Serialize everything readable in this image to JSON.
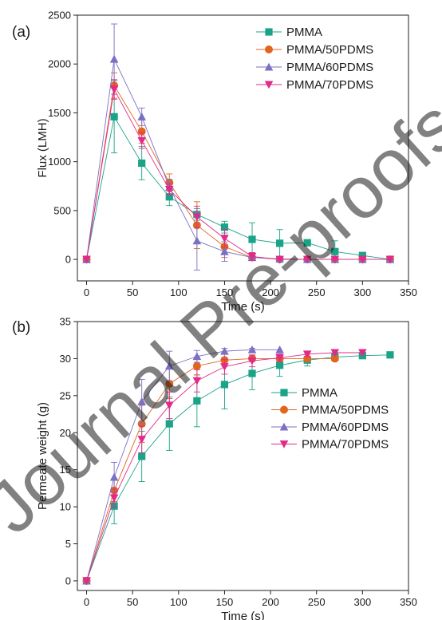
{
  "watermark": {
    "text": "Journal Pre-proofs",
    "color": "#dcdcdc"
  },
  "colors": {
    "PMMA": "#1aa387",
    "PMMA/50PDMS": "#e0651f",
    "PMMA/60PDMS": "#7a70c4",
    "PMMA/70PDMS": "#e22a8a"
  },
  "chart_data": [
    {
      "type": "line",
      "panel_label": "(a)",
      "title": "",
      "xlabel": "Time (s)",
      "ylabel": "Flux (LMH)",
      "xlim": [
        -10,
        350
      ],
      "ylim": [
        -220,
        2500
      ],
      "xticks": [
        0,
        50,
        100,
        150,
        200,
        250,
        300,
        350
      ],
      "yticks": [
        0,
        500,
        1000,
        1500,
        2000,
        2500
      ],
      "grid": false,
      "legend_position": "top-right",
      "series": [
        {
          "name": "PMMA",
          "marker": "square",
          "x": [
            0,
            30,
            60,
            90,
            120,
            150,
            180,
            210,
            240,
            270,
            300,
            330
          ],
          "y": [
            0,
            1460,
            985,
            640,
            460,
            330,
            205,
            165,
            170,
            80,
            40,
            0
          ],
          "err": [
            0,
            370,
            170,
            90,
            60,
            60,
            170,
            140,
            0,
            110,
            0,
            0
          ]
        },
        {
          "name": "PMMA/50PDMS",
          "marker": "circle",
          "x": [
            0,
            30,
            60,
            90,
            120,
            150,
            180,
            210,
            240,
            270,
            300,
            330
          ],
          "y": [
            0,
            1780,
            1310,
            785,
            350,
            130,
            20,
            0,
            0,
            0,
            0,
            0
          ],
          "err": [
            0,
            130,
            120,
            90,
            240,
            110,
            30,
            0,
            0,
            0,
            0,
            0
          ]
        },
        {
          "name": "PMMA/60PDMS",
          "marker": "triangle-up",
          "x": [
            0,
            30,
            60,
            90,
            120,
            150,
            180,
            210,
            240,
            270,
            300,
            330
          ],
          "y": [
            0,
            2050,
            1460,
            740,
            190,
            80,
            20,
            5,
            0,
            0,
            0,
            0
          ],
          "err": [
            0,
            360,
            90,
            80,
            300,
            100,
            30,
            0,
            0,
            0,
            0,
            0
          ]
        },
        {
          "name": "PMMA/70PDMS",
          "marker": "triangle-down",
          "x": [
            0,
            30,
            60,
            90,
            120,
            150,
            180,
            210,
            240,
            270,
            300,
            330
          ],
          "y": [
            0,
            1740,
            1215,
            715,
            435,
            215,
            30,
            0,
            0,
            0,
            0,
            0
          ],
          "err": [
            0,
            100,
            80,
            60,
            110,
            90,
            40,
            0,
            0,
            0,
            0,
            0
          ]
        }
      ]
    },
    {
      "type": "line",
      "panel_label": "(b)",
      "title": "",
      "xlabel": "Time (s)",
      "ylabel": "Permeate weight (g)",
      "xlim": [
        -10,
        350
      ],
      "ylim": [
        -1.3,
        35
      ],
      "xticks": [
        0,
        50,
        100,
        150,
        200,
        250,
        300,
        350
      ],
      "yticks": [
        0,
        5,
        10,
        15,
        20,
        25,
        30,
        35
      ],
      "grid": false,
      "legend_position": "center-right",
      "series": [
        {
          "name": "PMMA",
          "marker": "square",
          "x": [
            0,
            30,
            60,
            90,
            120,
            150,
            180,
            210,
            240,
            270,
            300,
            330
          ],
          "y": [
            0,
            10.1,
            16.8,
            21.2,
            24.3,
            26.5,
            28.0,
            29.1,
            29.8,
            30.2,
            30.4,
            30.5
          ],
          "err": [
            0,
            2.4,
            3.4,
            3.6,
            3.5,
            3.3,
            2.2,
            1.5,
            0.8,
            0.5,
            0.3,
            0
          ]
        },
        {
          "name": "PMMA/50PDMS",
          "marker": "circle",
          "x": [
            0,
            30,
            60,
            90,
            120,
            150,
            180,
            210,
            240,
            270
          ],
          "y": [
            0,
            12.2,
            21.2,
            26.6,
            29.0,
            29.8,
            30.0,
            30.0,
            30.0,
            30.0
          ],
          "err": [
            0,
            1.5,
            2.5,
            2.0,
            1.2,
            0.8,
            0.4,
            0,
            0,
            0
          ]
        },
        {
          "name": "PMMA/60PDMS",
          "marker": "triangle-up",
          "x": [
            0,
            30,
            60,
            90,
            120,
            150,
            180,
            210
          ],
          "y": [
            0,
            14.0,
            24.2,
            29.0,
            30.3,
            31.0,
            31.2,
            31.2
          ],
          "err": [
            0,
            2.0,
            3.0,
            2.0,
            0.8,
            0.4,
            0.2,
            0
          ]
        },
        {
          "name": "PMMA/70PDMS",
          "marker": "triangle-down",
          "x": [
            0,
            30,
            60,
            90,
            120,
            150,
            180,
            210,
            240,
            270,
            300
          ],
          "y": [
            0,
            11.2,
            19.1,
            23.7,
            27.0,
            28.9,
            29.7,
            30.1,
            30.6,
            30.8,
            30.8
          ],
          "err": [
            0,
            1.2,
            1.8,
            1.8,
            1.5,
            1.0,
            0.8,
            0.5,
            0.3,
            0,
            0
          ]
        }
      ]
    }
  ]
}
